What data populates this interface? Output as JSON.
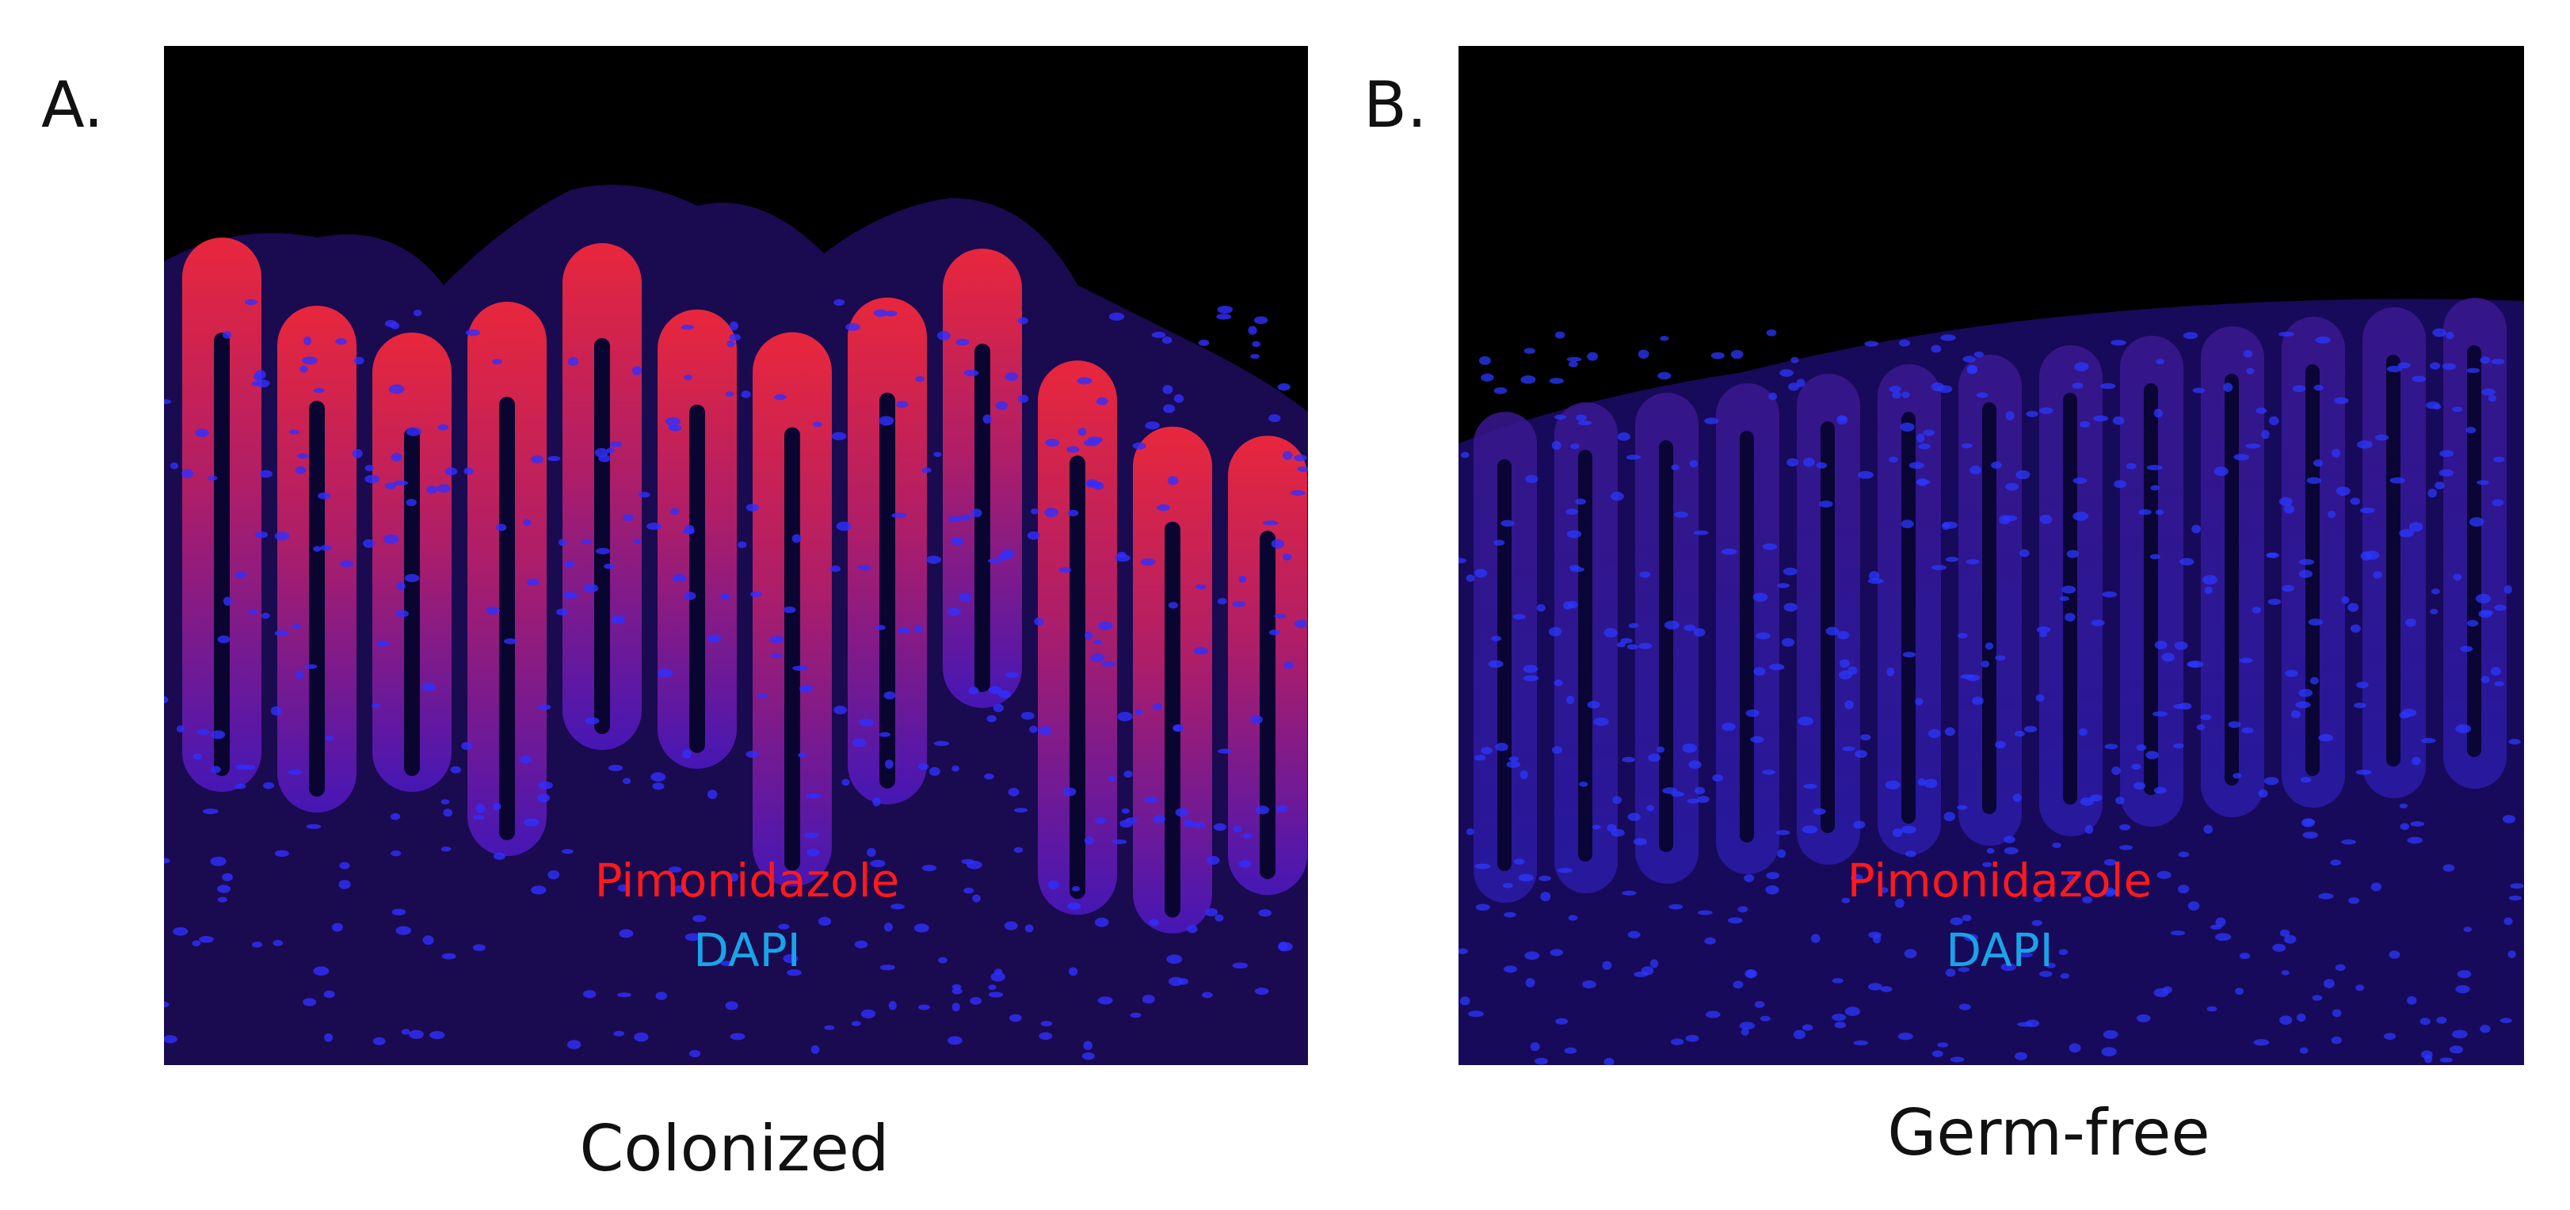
{
  "panels": [
    {
      "label": "A.",
      "caption": "Colonized",
      "stains": [
        "Pimonidazole",
        "DAPI"
      ]
    },
    {
      "label": "B.",
      "caption": "Germ-free",
      "stains": [
        "Pimonidazole",
        "DAPI"
      ]
    }
  ]
}
